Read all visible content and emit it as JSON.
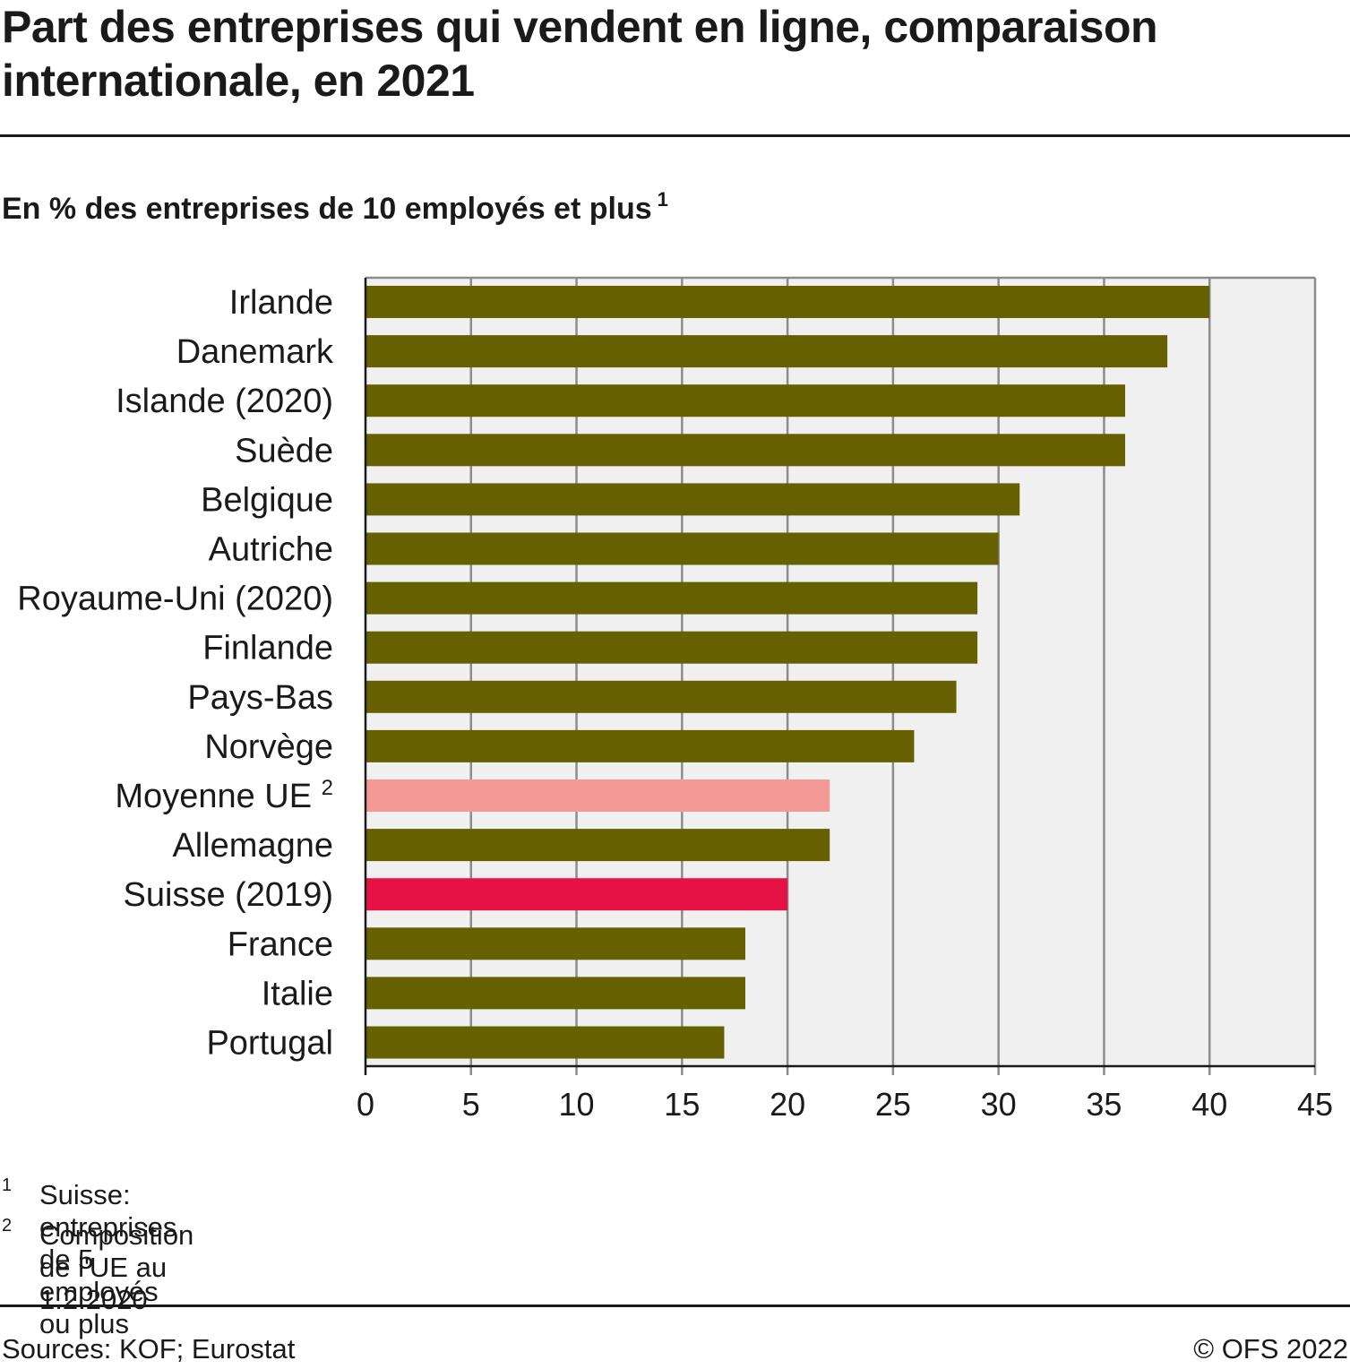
{
  "title": "Part des entreprises qui vendent en ligne, comparaison internationale, en 2021",
  "subtitle": "En % des entreprises de 10 employés et plus",
  "subtitle_note": "1",
  "chart_data": {
    "type": "bar",
    "orientation": "horizontal",
    "categories": [
      "Irlande",
      "Danemark",
      "Islande (2020)",
      "Suède",
      "Belgique",
      "Autriche",
      "Royaume-Uni (2020)",
      "Finlande",
      "Pays-Bas",
      "Norvège",
      "Moyenne UE",
      "Allemagne",
      "Suisse (2019)",
      "France",
      "Italie",
      "Portugal"
    ],
    "category_notes": [
      "",
      "",
      "",
      "",
      "",
      "",
      "",
      "",
      "",
      "",
      "2",
      "",
      "",
      "",
      "",
      ""
    ],
    "values": [
      40,
      38,
      36,
      36,
      31,
      30,
      29,
      29,
      28,
      26,
      22,
      22,
      20,
      18,
      18,
      17
    ],
    "colors": [
      "#666000",
      "#666000",
      "#666000",
      "#666000",
      "#666000",
      "#666000",
      "#666000",
      "#666000",
      "#666000",
      "#666000",
      "#f49a96",
      "#666000",
      "#e61245",
      "#666000",
      "#666000",
      "#666000"
    ],
    "xlim": [
      0,
      45
    ],
    "xticks": [
      0,
      5,
      10,
      15,
      20,
      25,
      30,
      35,
      40,
      45
    ],
    "grid": true,
    "plot_background": "#f0f0f0"
  },
  "footnotes": [
    {
      "num": "1",
      "text": "Suisse: entreprises de 5 employés ou plus"
    },
    {
      "num": "2",
      "text": "Composition de l'UE au 1.2.2020"
    }
  ],
  "source": "Sources: KOF; Eurostat",
  "copyright": "© OFS 2022"
}
